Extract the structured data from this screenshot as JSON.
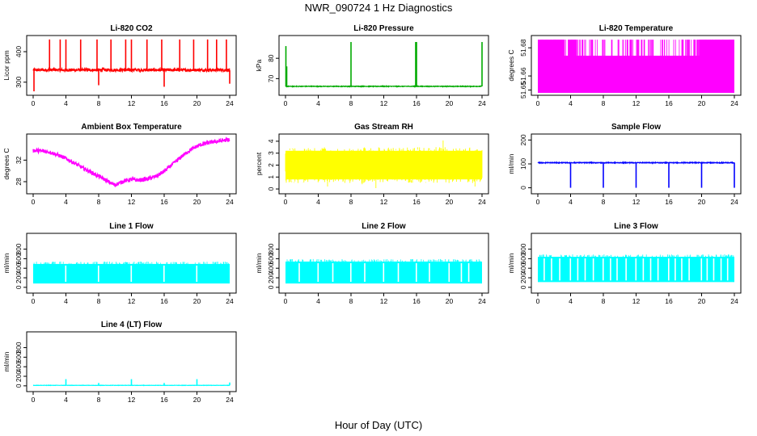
{
  "figure": {
    "title": "NWR_090724  1 Hz Diagnostics",
    "xlabel": "Hour of Day (UTC)"
  },
  "chart_data": [
    {
      "type": "line",
      "title": "Li-820 CO2",
      "ylabel": "Licor ppm",
      "xlim": [
        0,
        24
      ],
      "ylim": [
        265,
        445
      ],
      "xticks": [
        0,
        4,
        8,
        12,
        16,
        20,
        24
      ],
      "yticks": [
        300,
        400
      ],
      "color": "#ff0000",
      "pattern": "spikes",
      "baseline": 340,
      "noise": 5,
      "spikes": [
        {
          "x": 2,
          "y": 440
        },
        {
          "x": 3.3,
          "y": 440
        },
        {
          "x": 4,
          "y": 440
        },
        {
          "x": 5.8,
          "y": 440
        },
        {
          "x": 7.8,
          "y": 440
        },
        {
          "x": 9.5,
          "y": 440
        },
        {
          "x": 11.3,
          "y": 440
        },
        {
          "x": 12,
          "y": 440
        },
        {
          "x": 13.9,
          "y": 440
        },
        {
          "x": 15.7,
          "y": 440
        },
        {
          "x": 17.9,
          "y": 440
        },
        {
          "x": 19.6,
          "y": 440
        },
        {
          "x": 21.3,
          "y": 440
        },
        {
          "x": 22.4,
          "y": 440
        },
        {
          "x": 23.6,
          "y": 440
        },
        {
          "x": 0.1,
          "y": 270
        },
        {
          "x": 8,
          "y": 290
        },
        {
          "x": 16,
          "y": 285
        },
        {
          "x": 24,
          "y": 295
        }
      ]
    },
    {
      "type": "line",
      "title": "Li-820 Pressure",
      "ylabel": "kPa",
      "xlim": [
        0,
        24
      ],
      "ylim": [
        63,
        90
      ],
      "xticks": [
        0,
        4,
        8,
        12,
        16,
        20,
        24
      ],
      "yticks": [
        70,
        80
      ],
      "color": "#00aa00",
      "pattern": "spikes",
      "baseline": 66.2,
      "noise": 0.15,
      "spikes": [
        {
          "x": 0.05,
          "y": 86
        },
        {
          "x": 0.15,
          "y": 76
        },
        {
          "x": 8,
          "y": 88
        },
        {
          "x": 15.9,
          "y": 88
        },
        {
          "x": 16,
          "y": 88
        },
        {
          "x": 24,
          "y": 88
        }
      ]
    },
    {
      "type": "line",
      "title": "Li-820 Temperature",
      "ylabel": "degrees C",
      "xlim": [
        0,
        24
      ],
      "ylim": [
        51.648,
        51.687
      ],
      "xticks": [
        0,
        4,
        8,
        12,
        16,
        20,
        24
      ],
      "yticks": [
        51.65,
        51.66,
        51.68
      ],
      "color": "#ff00ff",
      "pattern": "quantized",
      "low": 51.648,
      "mid": 51.6744,
      "high": 51.6858,
      "high_ranges": [
        [
          0,
          3.3
        ],
        [
          3.7,
          4.8
        ],
        [
          17.6,
          17.8
        ],
        [
          18.3,
          18.5
        ],
        [
          19.0,
          19.2
        ],
        [
          19.7,
          24
        ]
      ]
    },
    {
      "type": "line",
      "title": "Ambient Box Temperature",
      "ylabel": "degrees C",
      "xlim": [
        0,
        24
      ],
      "ylim": [
        26.2,
        36.4
      ],
      "xticks": [
        0,
        4,
        8,
        12,
        16,
        20,
        24
      ],
      "yticks": [
        28,
        32
      ],
      "color": "#ff00ff",
      "pattern": "curve",
      "x": [
        0,
        1,
        2,
        3,
        4,
        5,
        6,
        7,
        8,
        9,
        9.5,
        10,
        10.5,
        11,
        12,
        13,
        14,
        15,
        16,
        17,
        18,
        19,
        20,
        21,
        22,
        23,
        24
      ],
      "y": [
        33.8,
        33.7,
        33.5,
        33.0,
        32.3,
        31.5,
        30.6,
        29.8,
        29.0,
        28.2,
        27.7,
        27.4,
        27.7,
        28.1,
        28.4,
        28.3,
        28.5,
        29.0,
        29.9,
        31.2,
        32.5,
        33.7,
        34.6,
        35.1,
        35.4,
        35.6,
        35.8
      ],
      "noise": 0.35
    },
    {
      "type": "line",
      "title": "Gas Stream RH",
      "ylabel": "percent",
      "xlim": [
        0,
        24
      ],
      "ylim": [
        -0.2,
        4.4
      ],
      "xticks": [
        0,
        4,
        8,
        12,
        16,
        20,
        24
      ],
      "yticks": [
        0,
        1,
        2,
        3,
        4
      ],
      "color": "#ffff00",
      "pattern": "band",
      "center": 2.0,
      "half_width": 1.5,
      "max": 4.2,
      "min": 0.0
    },
    {
      "type": "line",
      "title": "Sample Flow",
      "ylabel": "ml/min",
      "xlim": [
        0,
        24
      ],
      "ylim": [
        -15,
        215
      ],
      "xticks": [
        0,
        4,
        8,
        12,
        16,
        20,
        24
      ],
      "yticks": [
        0,
        100,
        200
      ],
      "color": "#0000ff",
      "pattern": "spikes",
      "baseline": 105,
      "noise": 1.5,
      "spikes": [
        {
          "x": 4,
          "y": 0
        },
        {
          "x": 8,
          "y": 0
        },
        {
          "x": 12,
          "y": 0
        },
        {
          "x": 16,
          "y": 0
        },
        {
          "x": 20,
          "y": 0
        },
        {
          "x": 24,
          "y": 0
        }
      ]
    },
    {
      "type": "line",
      "title": "Line 1 Flow",
      "ylabel": "ml/min",
      "xlim": [
        0,
        24
      ],
      "ylim": [
        -70,
        1080
      ],
      "xticks": [
        0,
        4,
        8,
        12,
        16,
        20,
        24
      ],
      "yticks": [
        0,
        200,
        400,
        600,
        800
      ],
      "color": "#00ffff",
      "pattern": "dense",
      "low": 80,
      "high": 490,
      "gaps": [
        3.9,
        7.9,
        11.9,
        15.9,
        19.9
      ]
    },
    {
      "type": "line",
      "title": "Line 2 Flow",
      "ylabel": "ml/min",
      "xlim": [
        0,
        24
      ],
      "ylim": [
        -70,
        1080
      ],
      "xticks": [
        0,
        4,
        8,
        12,
        16,
        20,
        24
      ],
      "yticks": [
        0,
        200,
        400,
        600,
        800
      ],
      "color": "#00ffff",
      "pattern": "dense",
      "low": 80,
      "high": 540,
      "gaps": [
        1.6,
        3.9,
        5.7,
        7.9,
        9.6,
        11.9,
        13.7,
        15.9,
        17.5,
        19.9,
        21.4,
        22.3
      ]
    },
    {
      "type": "line",
      "title": "Line 3 Flow",
      "ylabel": "ml/min",
      "xlim": [
        0,
        24
      ],
      "ylim": [
        -70,
        1080
      ],
      "xticks": [
        0,
        4,
        8,
        12,
        16,
        20,
        24
      ],
      "yticks": [
        0,
        200,
        400,
        600,
        800
      ],
      "color": "#00ffff",
      "pattern": "dense",
      "low": 110,
      "high": 640,
      "gaps": [
        0.7,
        1.6,
        2.6,
        3.9,
        4.8,
        5.7,
        6.7,
        7.9,
        8.8,
        9.6,
        10.7,
        11.9,
        12.8,
        13.7,
        14.6,
        15.9,
        16.7,
        17.5,
        18.4,
        19.9,
        20.6,
        21.4,
        22.3,
        23.1
      ]
    },
    {
      "type": "line",
      "title": "Line 4 (LT) Flow",
      "ylabel": "ml/min",
      "xlim": [
        0,
        24
      ],
      "ylim": [
        -70,
        1080
      ],
      "xticks": [
        0,
        4,
        8,
        12,
        16,
        20,
        24
      ],
      "yticks": [
        0,
        200,
        400,
        600,
        800
      ],
      "color": "#00ffff",
      "pattern": "spikes",
      "baseline": 10,
      "noise": 3,
      "spikes": [
        {
          "x": 4,
          "y": 140
        },
        {
          "x": 8,
          "y": 60
        },
        {
          "x": 12,
          "y": 140
        },
        {
          "x": 16,
          "y": 60
        },
        {
          "x": 20,
          "y": 140
        },
        {
          "x": 24,
          "y": 70
        }
      ]
    }
  ]
}
